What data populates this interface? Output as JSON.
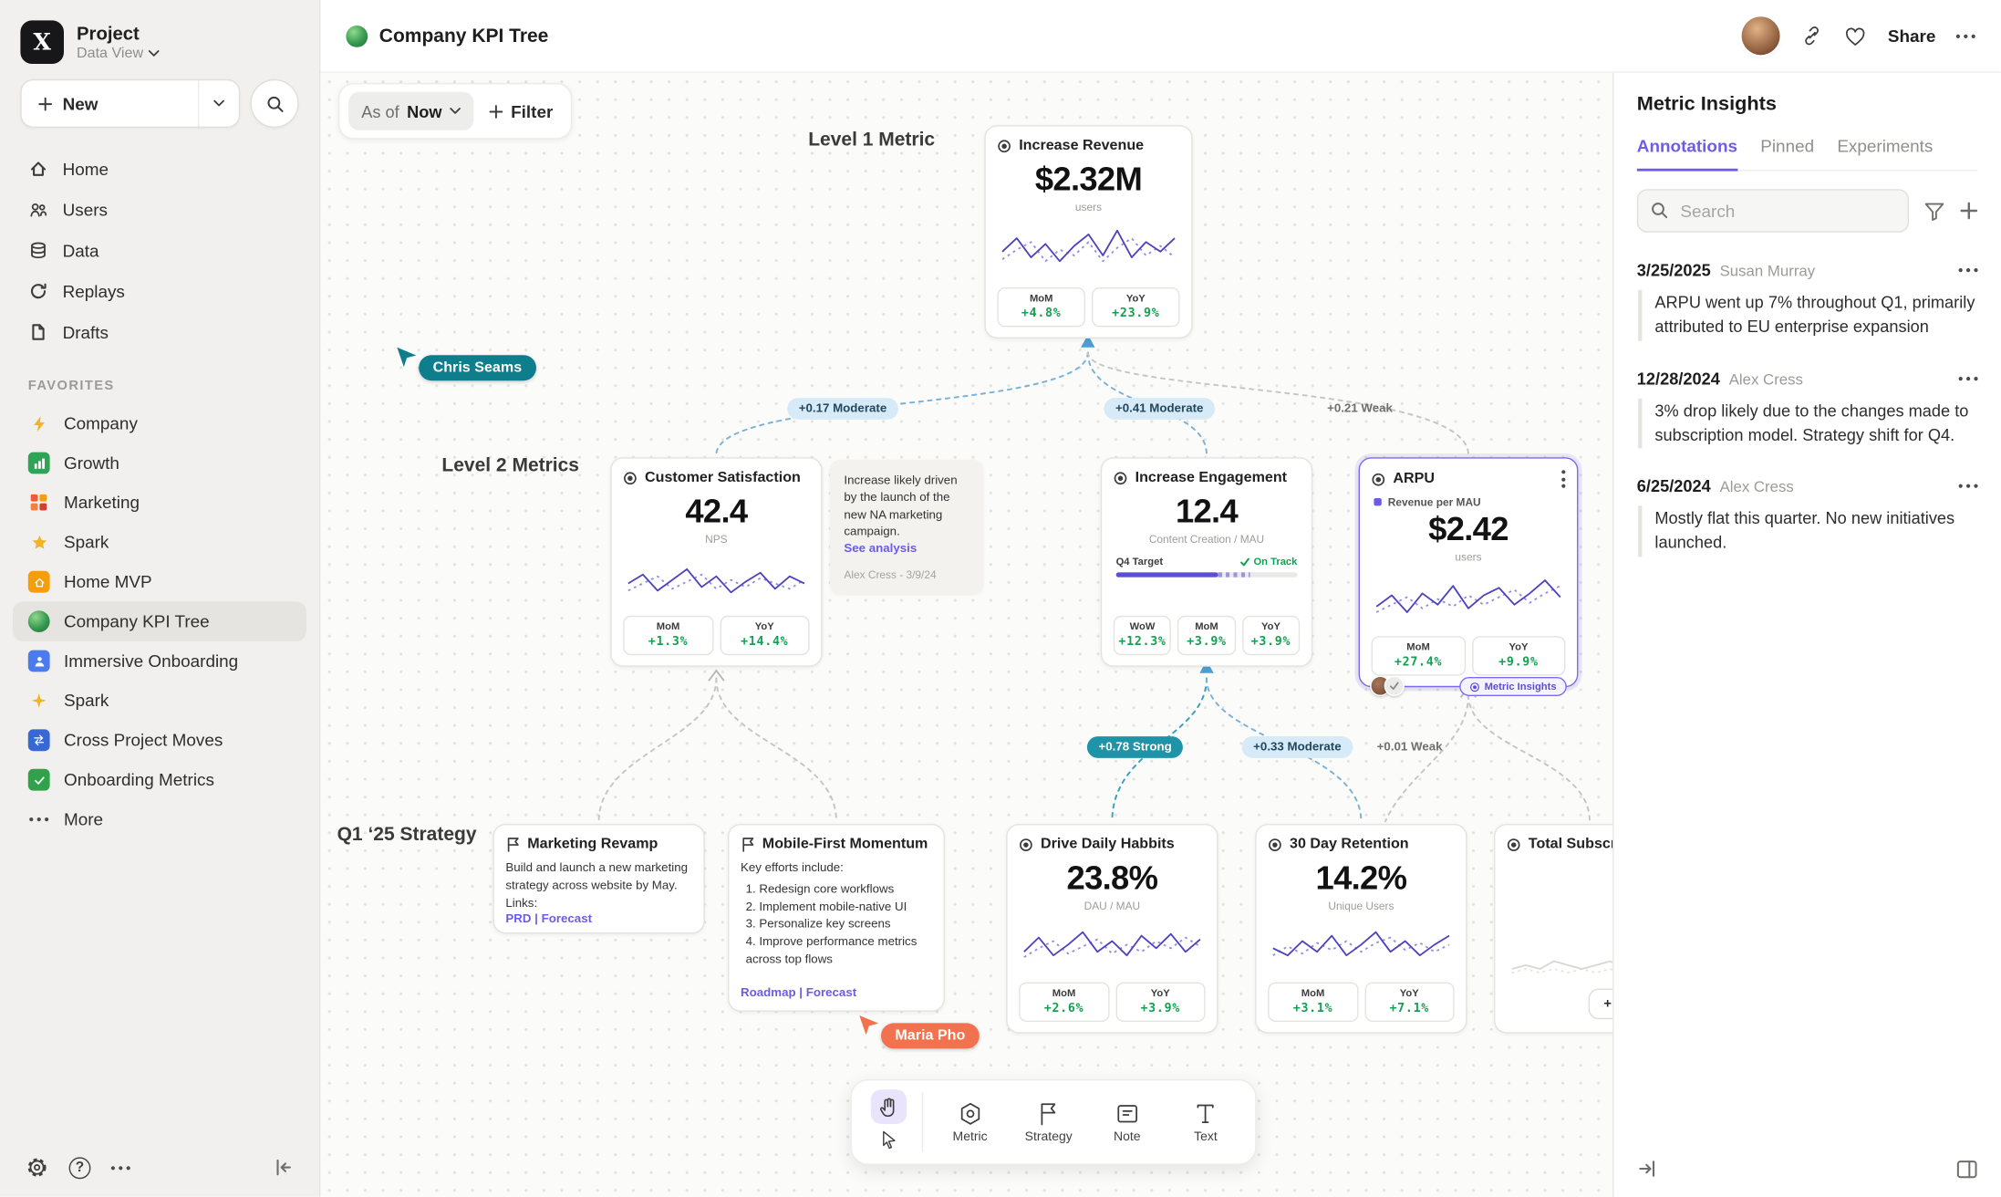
{
  "icons": {
    "help": "?"
  },
  "sidebar": {
    "project_name": "Project",
    "project_view": "Data View",
    "new_label": "New",
    "nav": [
      {
        "label": "Home"
      },
      {
        "label": "Users"
      },
      {
        "label": "Data"
      },
      {
        "label": "Replays"
      },
      {
        "label": "Drafts"
      }
    ],
    "favorites_label": "FAVORITES",
    "favorites": [
      {
        "label": "Company"
      },
      {
        "label": "Growth"
      },
      {
        "label": "Marketing"
      },
      {
        "label": "Spark"
      },
      {
        "label": "Home MVP"
      },
      {
        "label": "Company KPI Tree"
      },
      {
        "label": "Immersive Onboarding"
      },
      {
        "label": "Spark"
      },
      {
        "label": "Cross Project Moves"
      },
      {
        "label": "Onboarding Metrics"
      }
    ],
    "more_label": "More"
  },
  "header": {
    "title": "Company KPI Tree",
    "share_label": "Share"
  },
  "canvas": {
    "as_of_label": "As of",
    "as_of_value": "Now",
    "filter_label": "Filter",
    "level1_label": "Level 1 Metric",
    "level2_label": "Level 2 Metrics",
    "strategy_label": "Q1 ‘25 Strategy",
    "cursors": {
      "c1": "Chris Seams",
      "c2": "Maria Pho"
    },
    "edge_labels": {
      "e1": "+0.17 Moderate",
      "e2": "+0.41 Moderate",
      "e3": "+0.21 Weak",
      "e4": "+0.78 Strong",
      "e5": "+0.33 Moderate",
      "e6": "+0.01 Weak"
    },
    "cards": {
      "revenue": {
        "title": "Increase Revenue",
        "value": "$2.32M",
        "unit": "users",
        "stats": [
          {
            "label": "MoM",
            "value": "+4.8%"
          },
          {
            "label": "YoY",
            "value": "+23.9%"
          }
        ]
      },
      "csat": {
        "title": "Customer Satisfaction",
        "value": "42.4",
        "unit": "NPS",
        "stats": [
          {
            "label": "MoM",
            "value": "+1.3%"
          },
          {
            "label": "YoY",
            "value": "+14.4%"
          }
        ]
      },
      "note": {
        "text": "Increase likely driven by the launch of the new NA marketing campaign.",
        "link": "See analysis",
        "author": "Alex Cress - 3/9/24"
      },
      "engagement": {
        "title": "Increase Engagement",
        "value": "12.4",
        "unit": "Content Creation / MAU",
        "target_label": "Q4 Target",
        "status": "On Track",
        "stats": [
          {
            "label": "WoW",
            "value": "+12.3%"
          },
          {
            "label": "MoM",
            "value": "+3.9%"
          },
          {
            "label": "YoY",
            "value": "+3.9%"
          }
        ]
      },
      "arpu": {
        "title": "ARPU",
        "legend": "Revenue per MAU",
        "value": "$2.42",
        "unit": "users",
        "stats": [
          {
            "label": "MoM",
            "value": "+27.4%"
          },
          {
            "label": "YoY",
            "value": "+9.9%"
          }
        ],
        "badge": "Metric Insights"
      },
      "marketing_revamp": {
        "title": "Marketing Revamp",
        "body": "Build and launch a new marketing strategy across website by May. Links:",
        "links": "PRD | Forecast"
      },
      "mobile_first": {
        "title": "Mobile-First Momentum",
        "intro": "Key efforts include:",
        "item1": "1.  Redesign core workflows",
        "item2": "2.  Implement mobile-native UI",
        "item3": "3.  Personalize key screens",
        "item4": "4.  Improve performance metrics across top flows",
        "links": "Roadmap | Forecast"
      },
      "daily": {
        "title": "Drive Daily Habbits",
        "value": "23.8%",
        "unit": "DAU / MAU",
        "stats": [
          {
            "label": "MoM",
            "value": "+2.6%"
          },
          {
            "label": "YoY",
            "value": "+3.9%"
          }
        ]
      },
      "retention": {
        "title": "30 Day Retention",
        "value": "14.2%",
        "unit": "Unique Users",
        "stats": [
          {
            "label": "MoM",
            "value": "+3.1%"
          },
          {
            "label": "YoY",
            "value": "+7.1%"
          }
        ]
      },
      "total_subs": {
        "title": "Total Subscript",
        "connect": "+ Connect"
      }
    }
  },
  "toolbar": {
    "tools": [
      {
        "label": "Metric"
      },
      {
        "label": "Strategy"
      },
      {
        "label": "Note"
      },
      {
        "label": "Text"
      }
    ]
  },
  "panel": {
    "title": "Metric Insights",
    "tabs": [
      {
        "label": "Annotations"
      },
      {
        "label": "Pinned"
      },
      {
        "label": "Experiments"
      }
    ],
    "search_placeholder": "Search",
    "annotations": [
      {
        "date": "3/25/2025",
        "author": "Susan Murray",
        "text": "ARPU went up 7% throughout Q1, primarily attributed to EU enterprise expansion"
      },
      {
        "date": "12/28/2024",
        "author": "Alex Cress",
        "text": "3% drop likely due to the changes made to subscription model. Strategy shift for Q4."
      },
      {
        "date": "6/25/2024",
        "author": "Alex Cress",
        "text": "Mostly flat this quarter. No new initiatives launched."
      }
    ]
  },
  "sparklines": {
    "revenue": {
      "main": [
        14,
        21,
        11,
        18,
        9,
        17,
        23,
        12,
        25,
        11,
        19,
        14,
        21
      ],
      "alt": [
        10,
        15,
        19,
        9,
        15,
        12,
        19,
        9,
        16,
        21,
        12,
        17,
        11
      ]
    },
    "csat": {
      "main": [
        13,
        18,
        9,
        15,
        21,
        11,
        17,
        8,
        14,
        19,
        10,
        17,
        13
      ],
      "alt": [
        9,
        13,
        17,
        10,
        14,
        18,
        10,
        15,
        11,
        16,
        13,
        10,
        15
      ]
    },
    "arpu": {
      "main": [
        11,
        17,
        8,
        18,
        12,
        22,
        10,
        17,
        21,
        12,
        18,
        25,
        16
      ],
      "alt": [
        8,
        12,
        16,
        10,
        15,
        11,
        17,
        12,
        16,
        20,
        13,
        18,
        22
      ]
    },
    "daily": {
      "main": [
        12,
        20,
        10,
        16,
        23,
        12,
        18,
        10,
        21,
        14,
        22,
        12,
        19
      ],
      "alt": [
        9,
        14,
        18,
        11,
        15,
        19,
        11,
        16,
        12,
        18,
        14,
        20,
        15
      ]
    },
    "retention": {
      "main": [
        14,
        10,
        18,
        12,
        21,
        10,
        16,
        23,
        12,
        18,
        10,
        16,
        21
      ],
      "alt": [
        10,
        15,
        11,
        17,
        13,
        18,
        12,
        17,
        20,
        13,
        17,
        12,
        16
      ]
    },
    "subs": {
      "main": [
        12,
        13,
        12,
        14,
        13,
        12,
        13,
        14,
        12,
        13,
        12,
        13,
        12
      ],
      "alt": [
        11,
        12,
        11,
        12,
        11,
        12,
        11,
        12,
        11,
        12,
        11,
        12,
        11
      ]
    }
  }
}
